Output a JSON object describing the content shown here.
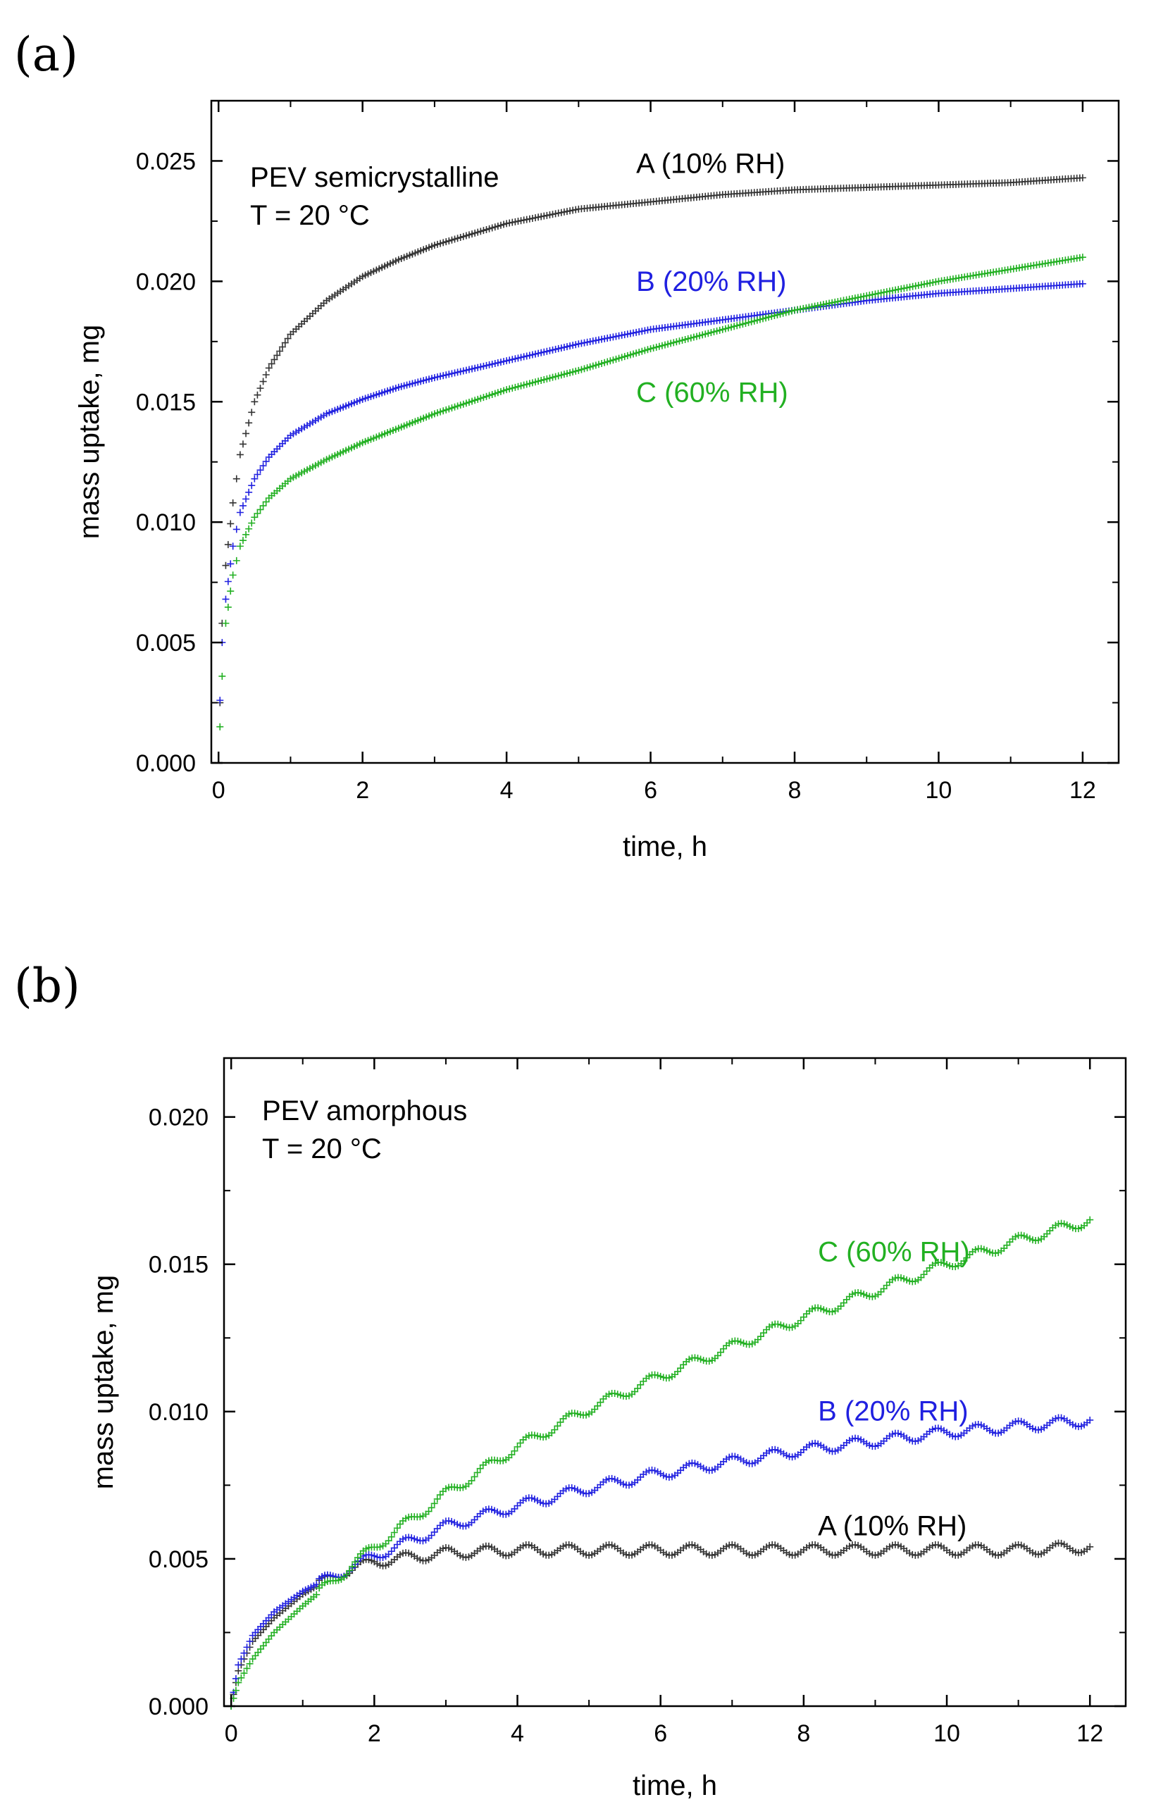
{
  "chart_data": [
    {
      "type": "scatter",
      "panel_label": "(a)",
      "annotation_lines": [
        "PEV semicrystalline",
        "T = 20 °C"
      ],
      "xlabel": "time, h",
      "ylabel": "mass uptake, mg",
      "xlim": [
        -0.1,
        12.5
      ],
      "ylim": [
        0.0,
        0.0275
      ],
      "xticks": [
        0,
        2,
        4,
        6,
        8,
        10,
        12
      ],
      "xtick_labels": [
        "0",
        "2",
        "4",
        "6",
        "8",
        "10",
        "12"
      ],
      "yticks": [
        0.0,
        0.005,
        0.01,
        0.015,
        0.02,
        0.025
      ],
      "ytick_labels": [
        "0.000",
        "0.005",
        "0.010",
        "0.015",
        "0.020",
        "0.025"
      ],
      "grid": false,
      "series": [
        {
          "name": "A (10% RH)",
          "label": "A (10% RH)",
          "color": "#333333",
          "label_color": "#000000",
          "label_pos": [
            5.8,
            0.0245
          ],
          "x": [
            0.02,
            0.05,
            0.1,
            0.2,
            0.3,
            0.5,
            0.7,
            1.0,
            1.5,
            2.0,
            2.5,
            3.0,
            4.0,
            5.0,
            6.0,
            7.0,
            8.0,
            9.0,
            10.0,
            11.0,
            12.0
          ],
          "y": [
            0.0025,
            0.0058,
            0.0082,
            0.0108,
            0.0128,
            0.015,
            0.0164,
            0.0178,
            0.0192,
            0.0202,
            0.0209,
            0.0215,
            0.0224,
            0.023,
            0.0233,
            0.0236,
            0.0238,
            0.0239,
            0.024,
            0.0241,
            0.0243
          ]
        },
        {
          "name": "B (20% RH)",
          "label": "B (20% RH)",
          "color": "#2020e0",
          "label_color": "#2020e0",
          "label_pos": [
            5.8,
            0.0196
          ],
          "x": [
            0.02,
            0.05,
            0.1,
            0.2,
            0.3,
            0.5,
            0.7,
            1.0,
            1.5,
            2.0,
            2.5,
            3.0,
            4.0,
            5.0,
            6.0,
            7.0,
            8.0,
            9.0,
            10.0,
            11.0,
            12.0
          ],
          "y": [
            0.0026,
            0.005,
            0.0068,
            0.009,
            0.0104,
            0.0118,
            0.0127,
            0.0136,
            0.0145,
            0.0151,
            0.0156,
            0.016,
            0.0167,
            0.0174,
            0.018,
            0.0184,
            0.0188,
            0.0192,
            0.0195,
            0.0197,
            0.0199
          ]
        },
        {
          "name": "C (60% RH)",
          "label": "C (60% RH)",
          "color": "#22b022",
          "label_color": "#22b022",
          "label_pos": [
            5.8,
            0.015
          ],
          "x": [
            0.02,
            0.05,
            0.1,
            0.2,
            0.3,
            0.5,
            0.7,
            1.0,
            1.5,
            2.0,
            2.5,
            3.0,
            4.0,
            5.0,
            6.0,
            7.0,
            8.0,
            9.0,
            10.0,
            11.0,
            12.0
          ],
          "y": [
            0.0015,
            0.0036,
            0.0058,
            0.0078,
            0.009,
            0.0102,
            0.011,
            0.0118,
            0.0126,
            0.0133,
            0.0139,
            0.0145,
            0.0155,
            0.0163,
            0.0172,
            0.018,
            0.0188,
            0.0194,
            0.02,
            0.0205,
            0.021
          ]
        }
      ]
    },
    {
      "type": "scatter",
      "panel_label": "(b)",
      "annotation_lines": [
        "PEV amorphous",
        "T = 20 °C"
      ],
      "xlabel": "time, h",
      "ylabel": "mass uptake, mg",
      "xlim": [
        -0.1,
        12.5
      ],
      "ylim": [
        0.0,
        0.022
      ],
      "xticks": [
        0,
        2,
        4,
        6,
        8,
        10,
        12
      ],
      "xtick_labels": [
        "0",
        "2",
        "4",
        "6",
        "8",
        "10",
        "12"
      ],
      "yticks": [
        0.0,
        0.005,
        0.01,
        0.015,
        0.02
      ],
      "ytick_labels": [
        "0.000",
        "0.005",
        "0.010",
        "0.015",
        "0.020"
      ],
      "grid": false,
      "series": [
        {
          "name": "A (10% RH)",
          "label": "A (10% RH)",
          "color": "#333333",
          "label_color": "#000000",
          "label_pos": [
            8.2,
            0.0058
          ],
          "x": [
            0.0,
            0.1,
            0.3,
            0.6,
            1.0,
            1.5,
            2.0,
            3.0,
            4.0,
            5.0,
            6.0,
            7.0,
            8.0,
            9.0,
            10.0,
            11.0,
            12.0
          ],
          "y": [
            0.0,
            0.0012,
            0.0022,
            0.003,
            0.0038,
            0.0045,
            0.0049,
            0.0052,
            0.0053,
            0.0053,
            0.0053,
            0.0053,
            0.0053,
            0.0053,
            0.0053,
            0.0053,
            0.0054
          ]
        },
        {
          "name": "B (20% RH)",
          "label": "B (20% RH)",
          "color": "#2020e0",
          "label_color": "#2020e0",
          "label_pos": [
            8.2,
            0.0097
          ],
          "x": [
            0.0,
            0.1,
            0.3,
            0.6,
            1.0,
            1.5,
            2.0,
            3.0,
            4.0,
            5.0,
            6.0,
            7.0,
            8.0,
            9.0,
            10.0,
            11.0,
            12.0
          ],
          "y": [
            0.0,
            0.0014,
            0.0024,
            0.0032,
            0.0039,
            0.0045,
            0.0051,
            0.0061,
            0.0068,
            0.0074,
            0.0079,
            0.0083,
            0.0087,
            0.009,
            0.0093,
            0.0095,
            0.0097
          ]
        },
        {
          "name": "C (60% RH)",
          "label": "C (60% RH)",
          "color": "#22b022",
          "label_color": "#22b022",
          "label_pos": [
            8.2,
            0.0151
          ],
          "x": [
            0.0,
            0.1,
            0.3,
            0.6,
            1.0,
            1.5,
            2.0,
            3.0,
            4.0,
            5.0,
            6.0,
            7.0,
            8.0,
            9.0,
            10.0,
            11.0,
            12.0
          ],
          "y": [
            0.0,
            0.0008,
            0.0016,
            0.0025,
            0.0034,
            0.0044,
            0.0054,
            0.0072,
            0.0088,
            0.0101,
            0.0112,
            0.0122,
            0.0132,
            0.0141,
            0.015,
            0.0158,
            0.0165
          ]
        }
      ]
    }
  ]
}
